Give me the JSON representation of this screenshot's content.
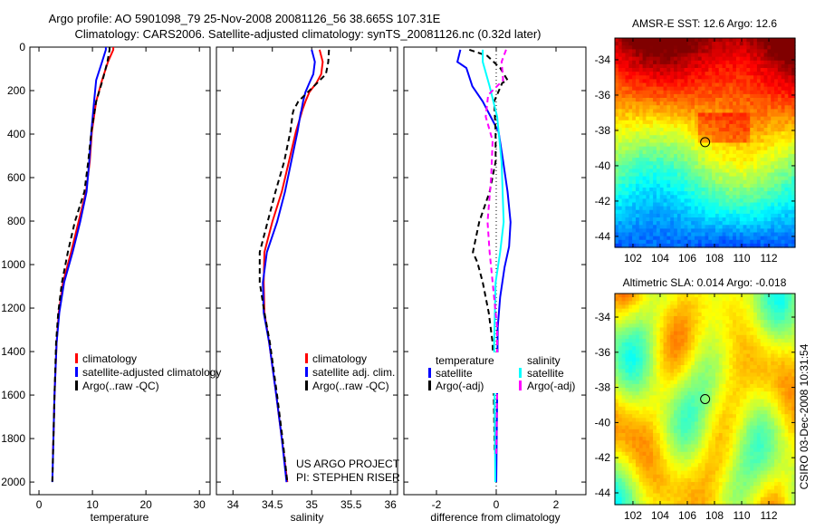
{
  "title": {
    "line1": "Argo profile: AO 5901098_79 25-Nov-2008 20081126_56 38.665S 107.31E",
    "line2": "Climatology: CARS2006. Satellite-adjusted climatology: synTS_20081126.nc (0.32d later)"
  },
  "credit": {
    "project": "US ARGO PROJECT",
    "pi": "PI: STEPHEN RISER"
  },
  "timestamp": "CSIRO 03-Dec-2008 10:31:54",
  "colors": {
    "red": "#ff0000",
    "blue": "#0000ff",
    "black": "#000000",
    "cyan": "#00ffff",
    "magenta": "#ff00ff"
  },
  "chart_data": [
    {
      "type": "line",
      "xlabel": "temperature",
      "ylabel": "",
      "xlim": [
        -1.7,
        32
      ],
      "ylim": [
        2058,
        0
      ],
      "xticks": [
        "0",
        "10",
        "20",
        "30"
      ],
      "yticks": [
        "0",
        "200",
        "400",
        "600",
        "800",
        "1000",
        "1200",
        "1400",
        "1600",
        "1800",
        "2000"
      ],
      "legend": [
        "climatology",
        "satellite-adjusted climatology",
        "Argo(..raw -QC)"
      ],
      "series": [
        {
          "name": "climatology",
          "color": "#ff0000",
          "style": "solid",
          "depth": [
            0,
            12,
            68,
            152,
            250,
            388,
            527,
            665,
            804,
            943,
            1082,
            1221,
            1360,
            1600,
            1800,
            1870
          ],
          "values": [
            13.9,
            13.9,
            12.9,
            11.8,
            10.7,
            9.9,
            9.5,
            8.8,
            7.4,
            6.0,
            4.5,
            3.7,
            3.3,
            2.9,
            2.7,
            2.6
          ]
        },
        {
          "name": "satellite-adjusted climatology",
          "color": "#0000ff",
          "style": "solid",
          "depth": [
            0,
            12,
            68,
            152,
            250,
            388,
            527,
            665,
            804,
            943,
            1082,
            1221,
            1360,
            1600,
            1800,
            2000
          ],
          "values": [
            12.5,
            12.5,
            11.8,
            10.7,
            10.3,
            9.8,
            9.4,
            8.9,
            7.7,
            6.3,
            4.7,
            3.8,
            3.3,
            2.9,
            2.7,
            2.5
          ]
        },
        {
          "name": "Argo(..raw -QC)",
          "color": "#000000",
          "style": "dashed",
          "depth": [
            0,
            12,
            68,
            152,
            250,
            388,
            527,
            665,
            804,
            943,
            1082,
            1221,
            1360,
            1600,
            1800,
            2000
          ],
          "values": [
            13.2,
            13.2,
            12.8,
            11.9,
            10.7,
            9.8,
            9.2,
            8.5,
            6.7,
            5.4,
            4.3,
            3.6,
            3.2,
            2.9,
            2.7,
            2.5
          ]
        }
      ]
    },
    {
      "type": "line",
      "xlabel": "salinity",
      "xlim": [
        33.79,
        36.09
      ],
      "ylim": [
        2058,
        0
      ],
      "xticks": [
        "34",
        "34.5",
        "35",
        "35.5",
        "36"
      ],
      "legend": [
        "climatology",
        "satellite adj. clim.",
        "Argo(..raw -QC)"
      ],
      "series": [
        {
          "name": "climatology",
          "color": "#ff0000",
          "style": "solid",
          "depth": [
            12,
            68,
            124,
            165,
            207,
            250,
            290,
            304,
            388,
            527,
            665,
            804,
            943,
            1082,
            1221,
            1360,
            1600,
            1800,
            2000
          ],
          "values": [
            35.1,
            35.14,
            35.12,
            35.06,
            34.97,
            34.92,
            34.88,
            34.87,
            34.8,
            34.71,
            34.62,
            34.5,
            34.4,
            34.39,
            34.4,
            34.46,
            34.55,
            34.62,
            34.69
          ]
        },
        {
          "name": "satellite adj. clim.",
          "color": "#0000ff",
          "style": "solid",
          "depth": [
            12,
            68,
            124,
            165,
            207,
            250,
            290,
            304,
            388,
            527,
            665,
            804,
            943,
            1082,
            1221,
            1360,
            1600,
            1800,
            2000
          ],
          "values": [
            35.0,
            35.04,
            35.02,
            34.97,
            34.92,
            34.89,
            34.87,
            34.86,
            34.82,
            34.74,
            34.66,
            34.56,
            34.43,
            34.38,
            34.39,
            34.46,
            34.55,
            34.62,
            34.68
          ]
        },
        {
          "name": "Argo(..raw -QC)",
          "color": "#000000",
          "style": "dashed",
          "depth": [
            12,
            68,
            124,
            165,
            207,
            250,
            290,
            304,
            388,
            527,
            665,
            804,
            943,
            1082,
            1221,
            1360,
            1600,
            1800,
            2000
          ],
          "values": [
            35.22,
            35.21,
            35.18,
            35.07,
            34.95,
            34.83,
            34.77,
            34.76,
            34.73,
            34.65,
            34.54,
            34.44,
            34.34,
            34.34,
            34.4,
            34.47,
            34.56,
            34.63,
            34.69
          ]
        }
      ]
    },
    {
      "type": "line",
      "xlabel": "difference from climatology",
      "xlim": [
        -3.09,
        3.0
      ],
      "ylim": [
        2058,
        0
      ],
      "xticks": [
        "-2",
        "0",
        "2"
      ],
      "legend_groups": [
        {
          "title": "temperature",
          "items": [
            "satellite",
            "Argo(-adj)"
          ]
        },
        {
          "title": "salinity",
          "items": [
            "satellite",
            "Argo(-adj)"
          ]
        }
      ],
      "series": [
        {
          "name": "temperature satellite",
          "color": "#0000ff",
          "style": "solid",
          "depth": [
            12,
            68,
            96,
            180,
            250,
            390,
            525,
            665,
            805,
            917,
            1012,
            1150,
            1290,
            1600,
            2000
          ],
          "values": [
            -1.2,
            -1.3,
            -1.0,
            -0.8,
            -0.45,
            0.08,
            0.23,
            0.38,
            0.48,
            0.43,
            0.28,
            0.13,
            0.05,
            0.03,
            0.0
          ]
        },
        {
          "name": "temperature Argo(-adj)",
          "color": "#000000",
          "style": "dashed",
          "depth": [
            12,
            40,
            96,
            152,
            165,
            250,
            388,
            527,
            665,
            804,
            943,
            990,
            1082,
            1221,
            1360,
            1600,
            1870
          ],
          "values": [
            -0.9,
            -0.3,
            0.13,
            0.38,
            0.2,
            -0.07,
            -0.02,
            -0.02,
            -0.22,
            -0.57,
            -0.78,
            -0.63,
            -0.45,
            -0.25,
            -0.12,
            -0.08,
            -0.05
          ]
        },
        {
          "name": "salinity satellite",
          "color": "#00ffff",
          "style": "solid",
          "depth": [
            12,
            68,
            180,
            320,
            527,
            804,
            943,
            1082,
            1360,
            2000
          ],
          "values": [
            -0.45,
            -0.45,
            -0.22,
            0.03,
            0.18,
            0.25,
            0.13,
            -0.02,
            -0.07,
            -0.03
          ]
        },
        {
          "name": "salinity Argo(-adj)",
          "color": "#ff00ff",
          "style": "dashed",
          "depth": [
            12,
            68,
            152,
            220,
            320,
            430,
            596,
            804,
            943,
            1082,
            1290,
            1600,
            1870
          ],
          "values": [
            0.33,
            0.18,
            0.23,
            -0.27,
            -0.35,
            -0.12,
            -0.17,
            -0.29,
            -0.22,
            -0.12,
            0.03,
            0.03,
            0.0
          ]
        }
      ]
    },
    {
      "type": "heatmap",
      "title": "AMSR-E SST: 12.6 Argo: 12.6",
      "xlim": [
        100.67,
        113.93
      ],
      "ylim": [
        -44.62,
        -32.77
      ],
      "xticks": [
        "102",
        "104",
        "106",
        "108",
        "110",
        "112"
      ],
      "yticks": [
        "-34",
        "-36",
        "-38",
        "-40",
        "-42",
        "-44"
      ],
      "marker": {
        "lon": 107.31,
        "lat": -38.665
      }
    },
    {
      "type": "heatmap",
      "title": "Altimetric SLA: 0.014 Argo: -0.018",
      "xlim": [
        100.67,
        113.93
      ],
      "ylim": [
        -44.67,
        -32.66
      ],
      "xticks": [
        "102",
        "104",
        "106",
        "108",
        "110",
        "112"
      ],
      "yticks": [
        "-34",
        "-36",
        "-38",
        "-40",
        "-42",
        "-44"
      ],
      "marker": {
        "lon": 107.31,
        "lat": -38.665
      }
    }
  ]
}
